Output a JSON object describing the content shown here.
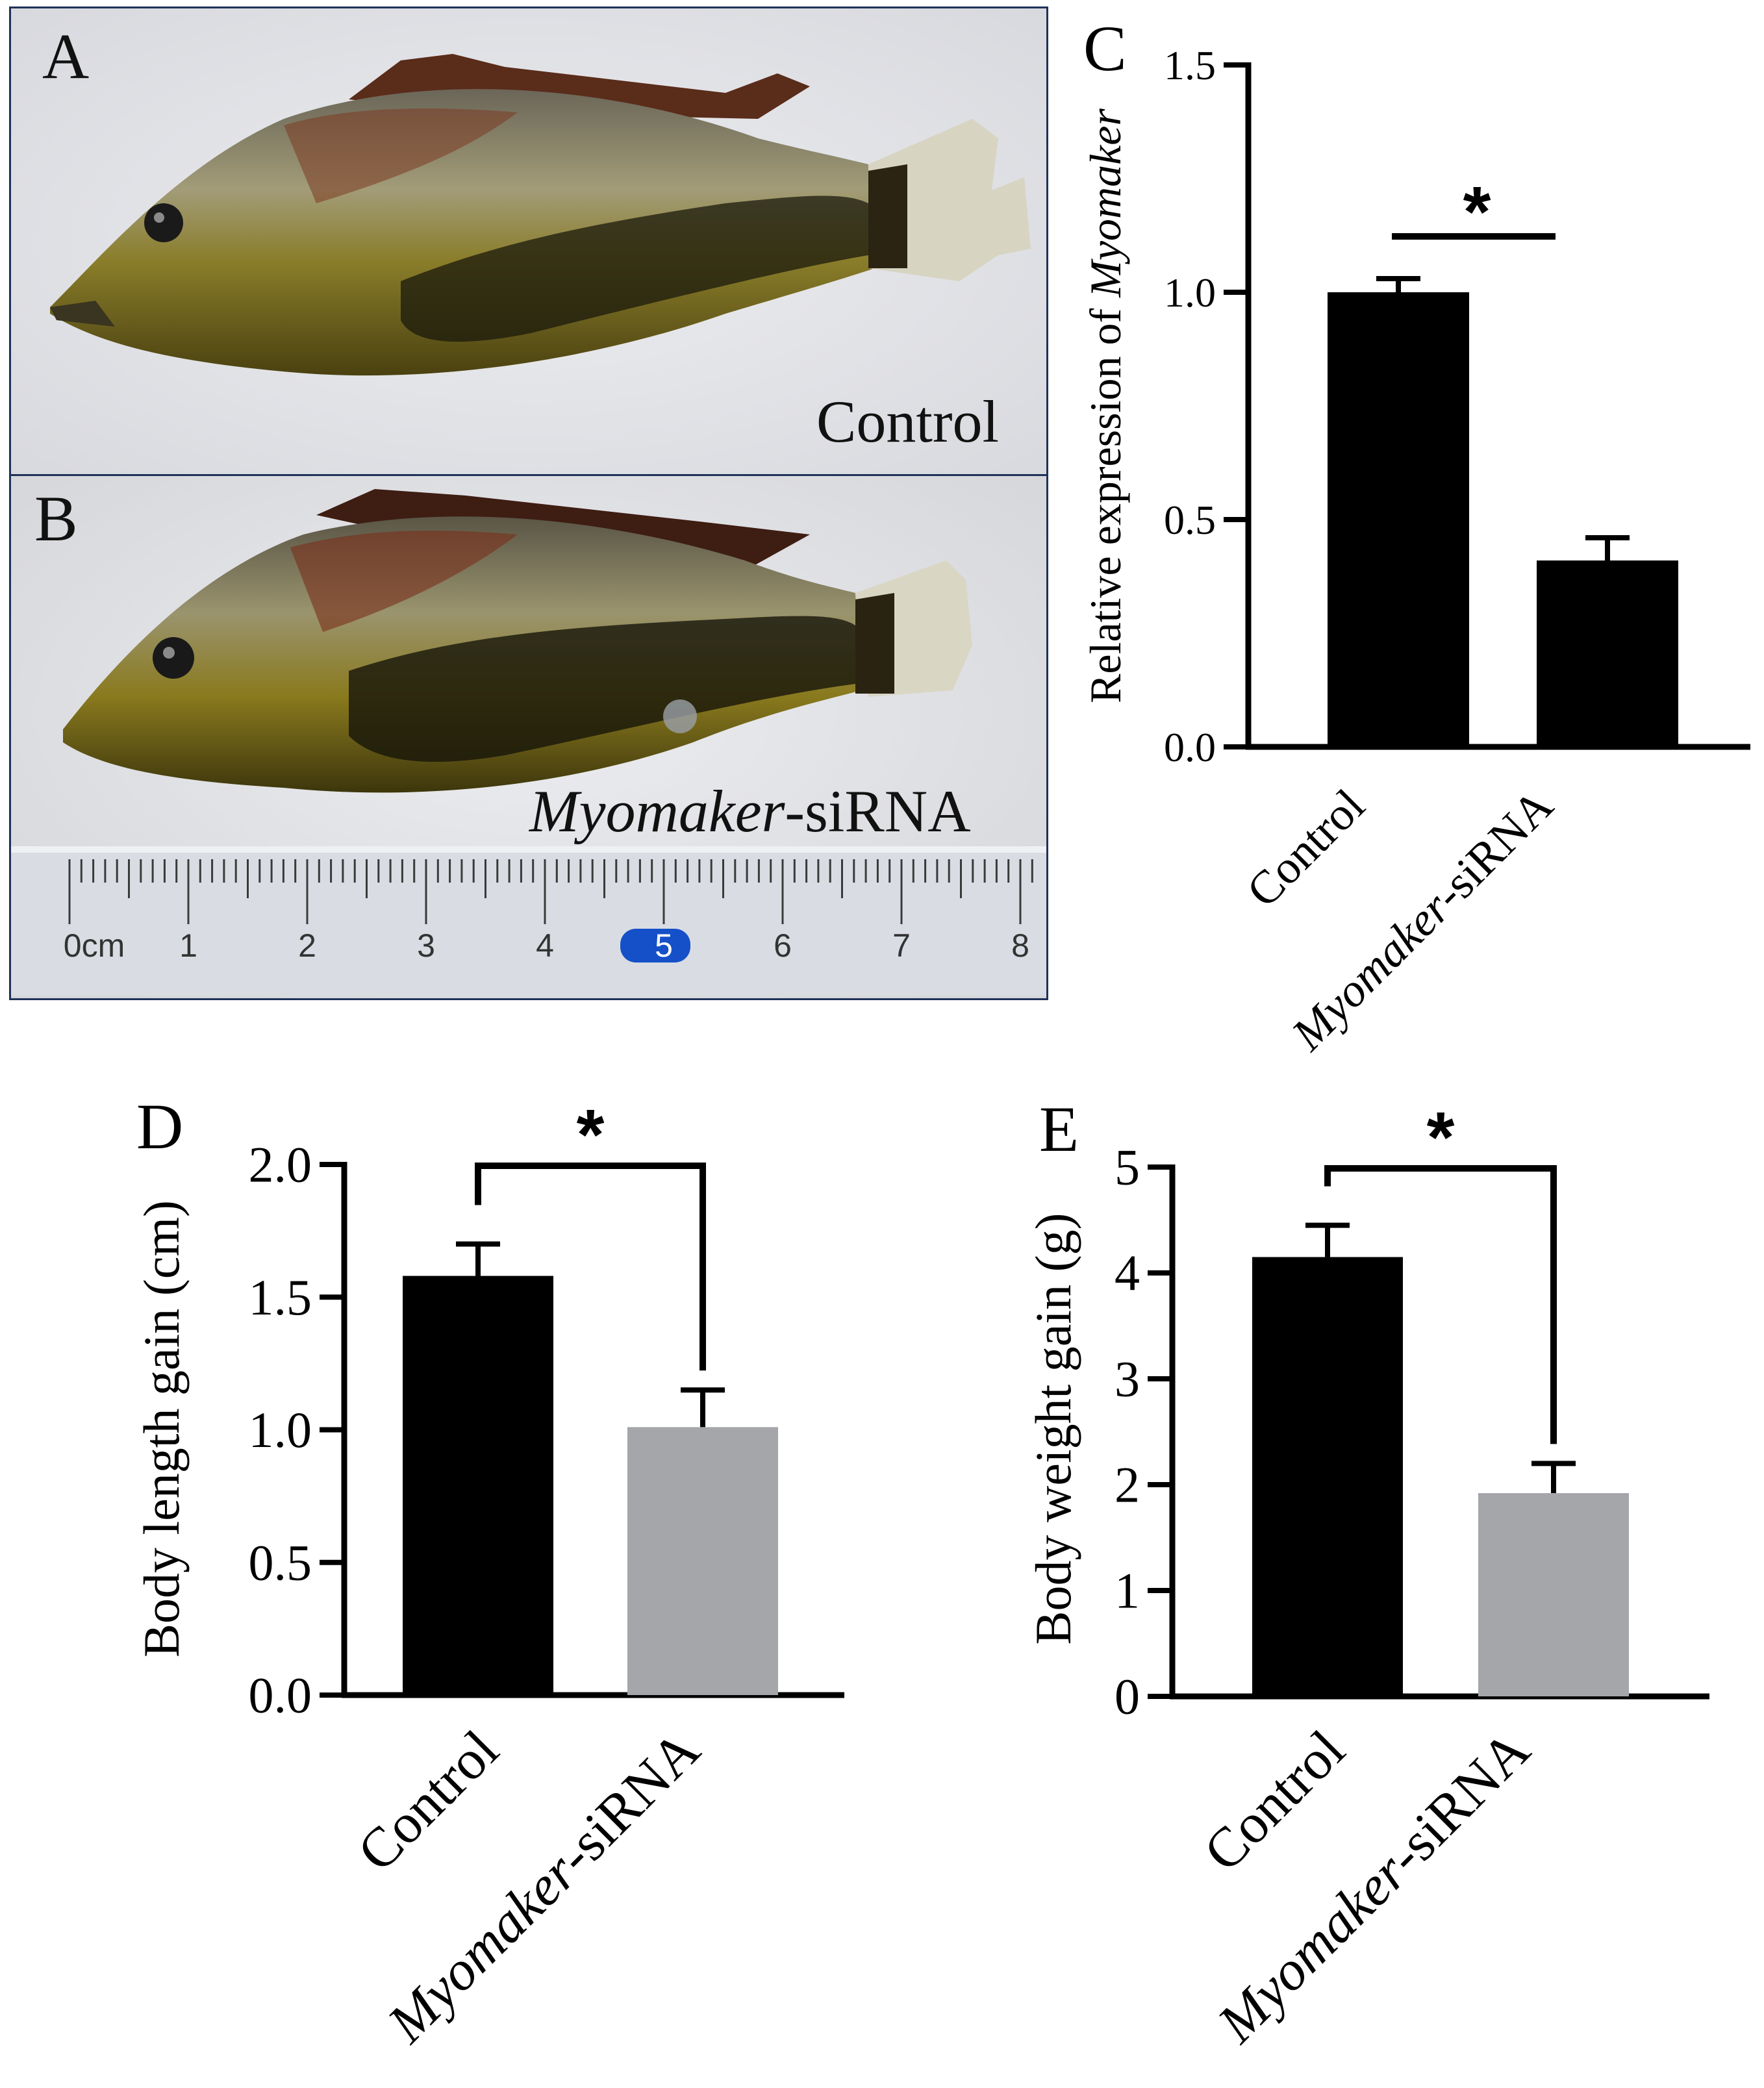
{
  "panels": {
    "A": {
      "letter": "A",
      "caption": "Control"
    },
    "B": {
      "letter": "B",
      "caption_italic": "Myomaker",
      "caption_rest": "-siRNA"
    },
    "C": {
      "letter": "C"
    },
    "D": {
      "letter": "D"
    },
    "E": {
      "letter": "E"
    }
  },
  "ruler": {
    "labels": [
      "0cm",
      "1",
      "2",
      "3",
      "4",
      "5",
      "6",
      "7",
      "8"
    ],
    "highlight_label": "5",
    "highlight_color": "#1550c8"
  },
  "colors": {
    "control": "#000000",
    "sirna_black": "#000000",
    "sirna_gray": "#a5a6aa",
    "border": "#1f3358"
  },
  "significance_mark": "*",
  "chart_data": [
    {
      "id": "C",
      "type": "bar",
      "categories": [
        "Control",
        "Myomaker-siRNA"
      ],
      "values": [
        1.0,
        0.41
      ],
      "errors": [
        0.03,
        0.05
      ],
      "ylabel_prefix": "Relative expression of ",
      "ylabel_italic": "Myomaker",
      "ylim": [
        0,
        1.5
      ],
      "yticks": [
        "0.0",
        "0.5",
        "1.0",
        "1.5"
      ],
      "significance": "*",
      "bracket": "line"
    },
    {
      "id": "D",
      "type": "bar",
      "categories": [
        "Control",
        "Myomaker-siRNA"
      ],
      "values": [
        1.58,
        1.01
      ],
      "errors": [
        0.12,
        0.14
      ],
      "ylabel": "Body length gain (cm)",
      "ylim": [
        0,
        2.0
      ],
      "yticks": [
        "0.0",
        "0.5",
        "1.0",
        "1.5",
        "2.0"
      ],
      "significance": "*",
      "bracket": "bracket"
    },
    {
      "id": "E",
      "type": "bar",
      "categories": [
        "Control",
        "Myomaker-siRNA"
      ],
      "values": [
        4.15,
        1.92
      ],
      "errors": [
        0.3,
        0.28
      ],
      "ylabel": "Body weight gain (g)",
      "ylim": [
        0,
        5
      ],
      "yticks": [
        "0",
        "1",
        "2",
        "3",
        "4",
        "5"
      ],
      "significance": "*",
      "bracket": "bracket"
    }
  ]
}
